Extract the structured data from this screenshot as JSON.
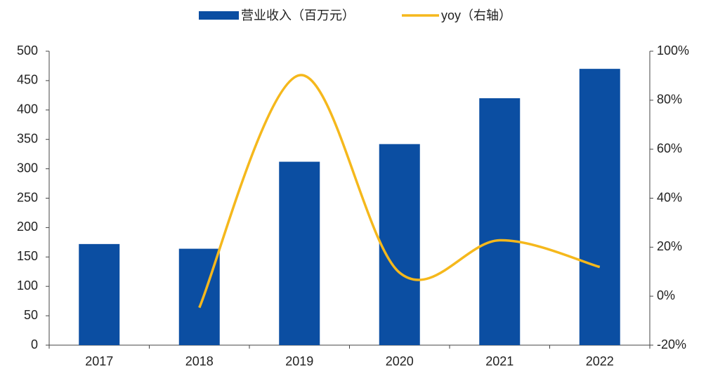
{
  "chart_data": {
    "type": "bar-line",
    "categories": [
      "2017",
      "2018",
      "2019",
      "2020",
      "2021",
      "2022"
    ],
    "series": [
      {
        "name": "营业收入（百万元）",
        "color": "#0b4ea2",
        "type": "bar",
        "values": [
          172,
          164,
          312,
          342,
          420,
          470
        ]
      },
      {
        "name": "yoy（右轴）",
        "color": "#f5b81c",
        "type": "line",
        "axis": "y2",
        "smooth": true,
        "values": [
          null,
          -4.7,
          90.2,
          9.6,
          22.8,
          11.9
        ]
      }
    ],
    "ylim": [
      0,
      500
    ],
    "yticks": [
      0,
      50,
      100,
      150,
      200,
      250,
      300,
      350,
      400,
      450,
      500
    ],
    "y2lim": [
      -20,
      100
    ],
    "y2ticks": [
      {
        "value": -20,
        "label": "-20%"
      },
      {
        "value": 0,
        "label": "0%"
      },
      {
        "value": 20,
        "label": "20%"
      },
      {
        "value": 40,
        "label": "40%"
      },
      {
        "value": 60,
        "label": "60%"
      },
      {
        "value": 80,
        "label": "80%"
      },
      {
        "value": 100,
        "label": "100%"
      }
    ],
    "legend": "top",
    "grid": false
  }
}
